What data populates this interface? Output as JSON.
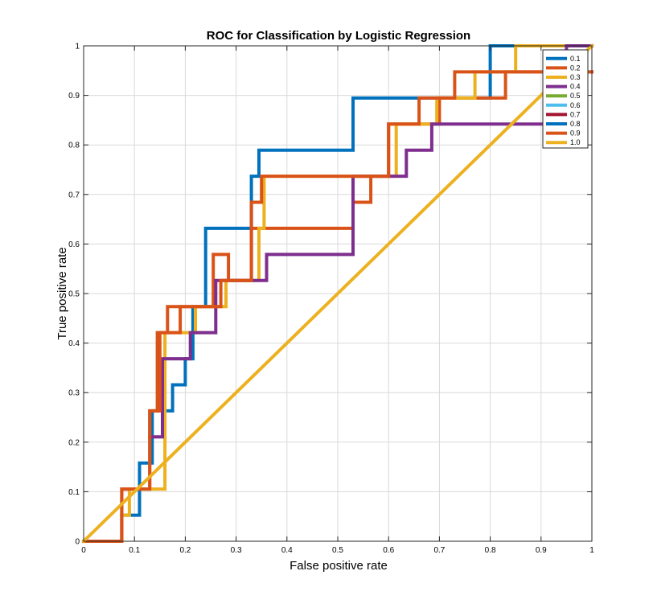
{
  "chart_data": {
    "type": "line",
    "title": "ROC for Classification by Logistic Regression",
    "xlabel": "False positive rate",
    "ylabel": "True positive rate",
    "xlim": [
      0,
      1
    ],
    "ylim": [
      0,
      1
    ],
    "grid": true,
    "legend_position": "top-right",
    "xticks": [
      0,
      0.1,
      0.2,
      0.3,
      0.4,
      0.5,
      0.6,
      0.7,
      0.8,
      0.9,
      1
    ],
    "xtick_labels": [
      "0",
      "0.1",
      "0.2",
      "0.3",
      "0.4",
      "0.5",
      "0.6",
      "0.7",
      "0.8",
      "0.9",
      "1"
    ],
    "yticks": [
      0,
      0.1,
      0.2,
      0.3,
      0.4,
      0.5,
      0.6,
      0.7,
      0.8,
      0.9,
      1
    ],
    "ytick_labels": [
      "0",
      "0.1",
      "0.2",
      "0.3",
      "0.4",
      "0.5",
      "0.6",
      "0.7",
      "0.8",
      "0.9",
      "1"
    ],
    "series": [
      {
        "name": "0.1",
        "color": "#0072BD",
        "x": [
          0.075,
          0.075,
          0.11,
          0.11,
          0.135,
          0.135,
          0.175,
          0.175,
          0.2,
          0.2,
          0.215,
          0.215,
          0.24,
          0.24,
          0.33,
          0.33,
          0.345,
          0.345,
          0.53,
          0.53,
          0.615,
          0.615,
          0.8,
          0.8,
          1.0
        ],
        "y": [
          0,
          0.0526,
          0.0526,
          0.1579,
          0.1579,
          0.2632,
          0.2632,
          0.3158,
          0.3158,
          0.3684,
          0.3684,
          0.4737,
          0.4737,
          0.6316,
          0.6316,
          0.7368,
          0.7368,
          0.7895,
          0.7895,
          0.8947,
          0.8947,
          0.8947,
          0.8947,
          1.0,
          1.0
        ]
      },
      {
        "name": "0.2",
        "color": "#D95319",
        "x": [
          0,
          0.075,
          0.075,
          0.13,
          0.13,
          0.145,
          0.145,
          0.165,
          0.165,
          0.19,
          0.19,
          0.255,
          0.255,
          0.285,
          0.285,
          0.33,
          0.33,
          0.365,
          0.365,
          0.53,
          0.53,
          0.565,
          0.565,
          0.6,
          0.6,
          0.635,
          0.635,
          0.7,
          0.7,
          0.74,
          0.74,
          0.83,
          0.83,
          1.0
        ],
        "y": [
          0,
          0,
          0.1053,
          0.1053,
          0.2632,
          0.2632,
          0.4211,
          0.4211,
          0.4737,
          0.4737,
          0.4737,
          0.4737,
          0.5789,
          0.5789,
          0.5263,
          0.5263,
          0.6316,
          0.6316,
          0.6316,
          0.6316,
          0.6842,
          0.6842,
          0.7368,
          0.7368,
          0.8421,
          0.8421,
          0.8421,
          0.8421,
          0.8947,
          0.8947,
          0.8947,
          0.8947,
          0.9474,
          0.9474
        ]
      },
      {
        "name": "0.3",
        "color": "#EDB120",
        "x": [
          0.075,
          0.09,
          0.09,
          0.16,
          0.16,
          0.22,
          0.22,
          0.28,
          0.28,
          0.345,
          0.345,
          0.355,
          0.355,
          0.505,
          0.505,
          0.615,
          0.615,
          0.695,
          0.695,
          0.77,
          0.77,
          0.85,
          0.85,
          1.0
        ],
        "y": [
          0.0526,
          0.0526,
          0.1053,
          0.1053,
          0.4211,
          0.4211,
          0.4737,
          0.4737,
          0.5263,
          0.5263,
          0.6316,
          0.6316,
          0.7368,
          0.7368,
          0.7368,
          0.7368,
          0.8421,
          0.8421,
          0.8947,
          0.8947,
          0.9474,
          0.9474,
          1.0,
          1.0
        ]
      },
      {
        "name": "0.4",
        "color": "#7E2F8E",
        "x": [
          0.13,
          0.13,
          0.155,
          0.155,
          0.21,
          0.21,
          0.26,
          0.26,
          0.36,
          0.36,
          0.53,
          0.53,
          0.635,
          0.635,
          0.685,
          0.685,
          0.95,
          0.95,
          1.0
        ],
        "y": [
          0.2105,
          0.2105,
          0.2105,
          0.3684,
          0.3684,
          0.4211,
          0.4211,
          0.5263,
          0.5263,
          0.5789,
          0.5789,
          0.7368,
          0.7368,
          0.7895,
          0.7895,
          0.8421,
          0.8421,
          1.0,
          1.0
        ]
      },
      {
        "name": "0.5",
        "color": "#77AC30",
        "x": [],
        "y": []
      },
      {
        "name": "0.6",
        "color": "#4DBEEE",
        "x": [],
        "y": []
      },
      {
        "name": "0.7",
        "color": "#A2142F",
        "x": [],
        "y": []
      },
      {
        "name": "0.8",
        "color": "#0072BD",
        "x": [],
        "y": []
      },
      {
        "name": "0.9",
        "color": "#D95319",
        "x": [
          0,
          0.075,
          0.075,
          0.13,
          0.13,
          0.15,
          0.15,
          0.17,
          0.17,
          0.19,
          0.19,
          0.27,
          0.27,
          0.33,
          0.33,
          0.35,
          0.35,
          0.585,
          0.585,
          0.6,
          0.6,
          0.66,
          0.66,
          0.73,
          0.73,
          0.83,
          0.83,
          1.0
        ],
        "y": [
          0,
          0,
          0.1053,
          0.1053,
          0.2632,
          0.2632,
          0.4211,
          0.4211,
          0.4211,
          0.4211,
          0.4737,
          0.4737,
          0.5263,
          0.5263,
          0.6842,
          0.6842,
          0.7368,
          0.7368,
          0.7368,
          0.7368,
          0.8421,
          0.8421,
          0.8947,
          0.8947,
          0.9474,
          0.9474,
          0.9474,
          0.9474
        ]
      },
      {
        "name": "1.0",
        "color": "#EDB120",
        "x": [
          0,
          1
        ],
        "y": [
          0,
          1
        ]
      }
    ]
  }
}
